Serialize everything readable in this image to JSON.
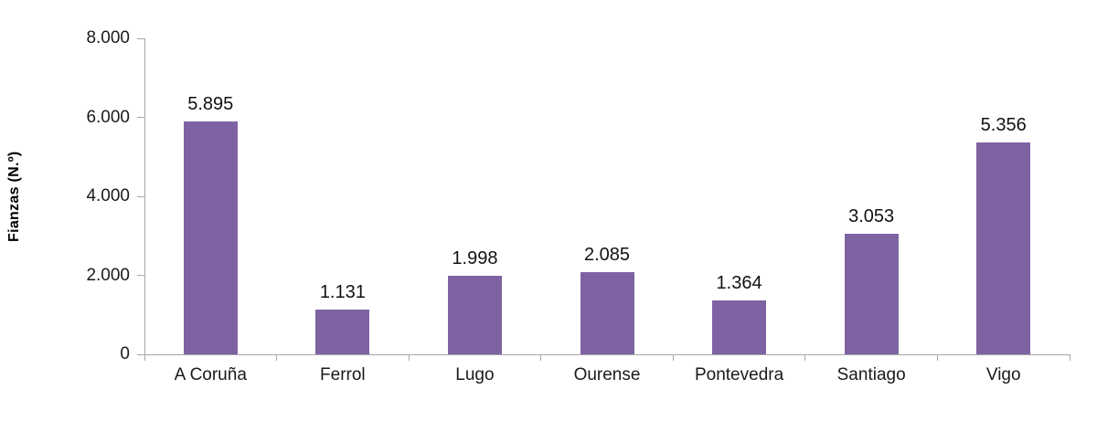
{
  "chart_data": {
    "type": "bar",
    "title": "",
    "categories": [
      "A Coruña",
      "Ferrol",
      "Lugo",
      "Ourense",
      "Pontevedra",
      "Santiago",
      "Vigo"
    ],
    "values": [
      5895,
      1131,
      1998,
      2085,
      1364,
      3053,
      5356
    ],
    "value_labels": [
      "5.895",
      "1.131",
      "1.998",
      "2.085",
      "1.364",
      "3.053",
      "5.356"
    ],
    "xlabel": "",
    "ylabel": "Fianzas (N.º)",
    "ylim": [
      0,
      8000
    ],
    "ytick_values": [
      0,
      2000,
      4000,
      6000,
      8000
    ],
    "ytick_labels": [
      "0",
      "2.000",
      "4.000",
      "6.000",
      "8.000"
    ],
    "grid": false,
    "legend": false,
    "bar_color": "#7E63A2",
    "axis_color": "#A6A6A6",
    "text_color": "#1a1a1a"
  }
}
